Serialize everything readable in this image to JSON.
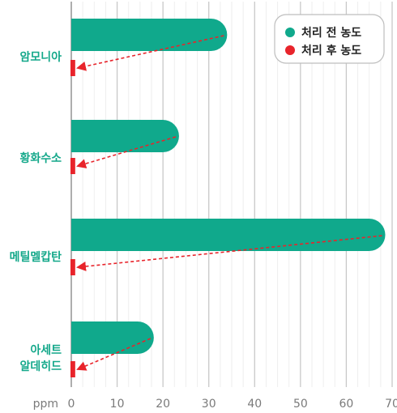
{
  "chart_data": {
    "type": "bar",
    "orientation": "horizontal",
    "categories": [
      [
        "암모니아"
      ],
      [
        "황화수소"
      ],
      [
        "메틸멜캅탄"
      ],
      [
        "아세트",
        "알데히드"
      ]
    ],
    "series": [
      {
        "name": "처리 전 농도",
        "values": [
          34,
          23.5,
          68.5,
          18
        ],
        "color": "#10a98c"
      },
      {
        "name": "처리 후 농도",
        "values": [
          0.5,
          0.5,
          0.5,
          0.5
        ],
        "color": "#e8242b"
      }
    ],
    "x_unit": "ppm",
    "xlim": [
      0,
      70
    ],
    "x_ticks": [
      0,
      10,
      20,
      30,
      40,
      50,
      60,
      70
    ],
    "grid": true,
    "legend_position": "top-right",
    "arrow_color": "#e8242b"
  }
}
